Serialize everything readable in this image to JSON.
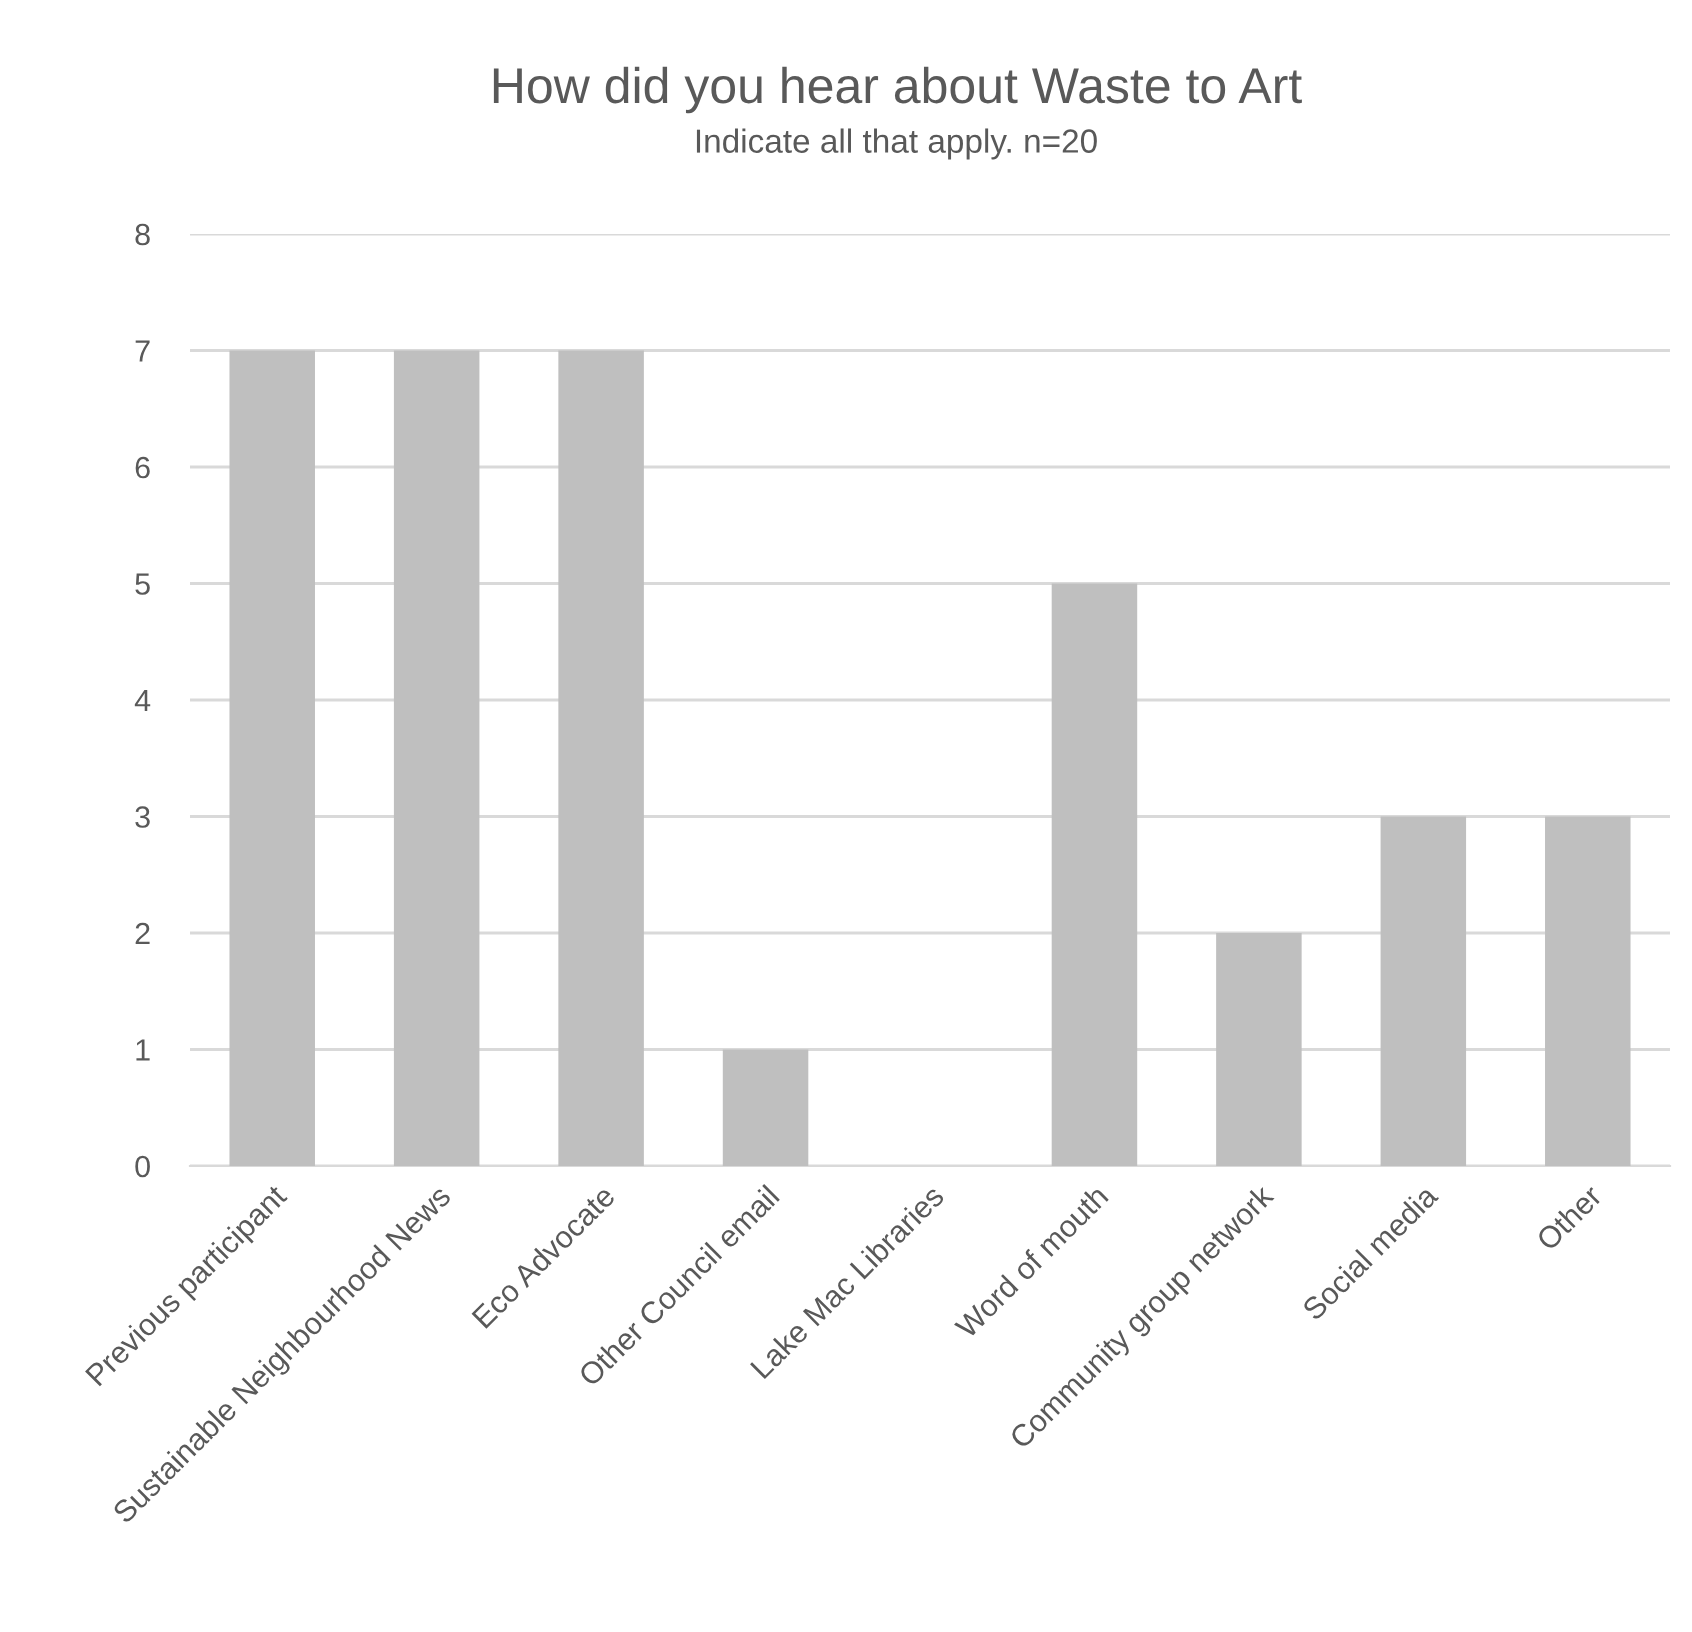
{
  "chart_data": {
    "type": "bar",
    "title": "How did you hear about Waste to Art",
    "subtitle": "Indicate all that apply. n=20",
    "categories": [
      "Previous participant",
      "Sustainable Neighbourhood News",
      "Eco Advocate",
      "Other Council email",
      "Lake Mac Libraries",
      "Word of mouth",
      "Community group network",
      "Social media",
      "Other"
    ],
    "values": [
      7,
      7,
      7,
      1,
      0,
      5,
      2,
      3,
      3
    ],
    "color": "#bfbfbf",
    "ylim": [
      0,
      8
    ],
    "yticks": [
      0,
      1,
      2,
      3,
      4,
      5,
      6,
      7,
      8
    ],
    "grid": "y",
    "legend": false
  }
}
